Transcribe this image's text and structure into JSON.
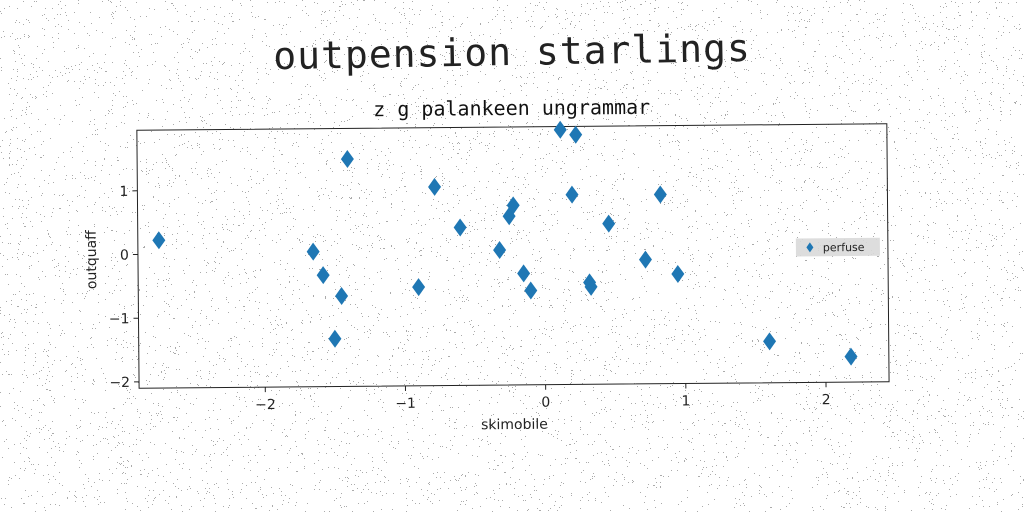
{
  "figure": {
    "suptitle": "outpension starlings"
  },
  "chart_data": {
    "type": "scatter",
    "title": "z g palankeen ungrammar",
    "xlabel": "skimobile",
    "ylabel": "outquaff",
    "xlim": [
      -2.9,
      2.45
    ],
    "ylim": [
      -2.1,
      1.95
    ],
    "xticks": [
      -2,
      -1,
      0,
      1,
      2
    ],
    "yticks": [
      -2,
      -1,
      0,
      1
    ],
    "grid": false,
    "legend": {
      "position": "center-right",
      "entries": [
        "perfuse"
      ]
    },
    "series": [
      {
        "name": "perfuse",
        "marker": "diamond",
        "color": "#1f77b4",
        "x": [
          -2.75,
          -1.65,
          -1.58,
          -1.45,
          -1.5,
          -1.4,
          -0.9,
          -0.78,
          -0.6,
          -0.32,
          -0.25,
          -0.22,
          -0.15,
          -0.1,
          0.12,
          0.2,
          0.23,
          0.32,
          0.33,
          0.46,
          0.72,
          0.83,
          0.95,
          1.6,
          2.18
        ],
        "y": [
          0.22,
          0.02,
          -0.35,
          -0.68,
          -1.35,
          1.47,
          -0.55,
          1.02,
          0.38,
          0.02,
          0.55,
          0.72,
          -0.35,
          -0.62,
          1.9,
          0.88,
          1.82,
          -0.5,
          -0.57,
          0.42,
          -0.15,
          0.87,
          -0.38,
          -1.45,
          -1.7
        ]
      }
    ]
  }
}
